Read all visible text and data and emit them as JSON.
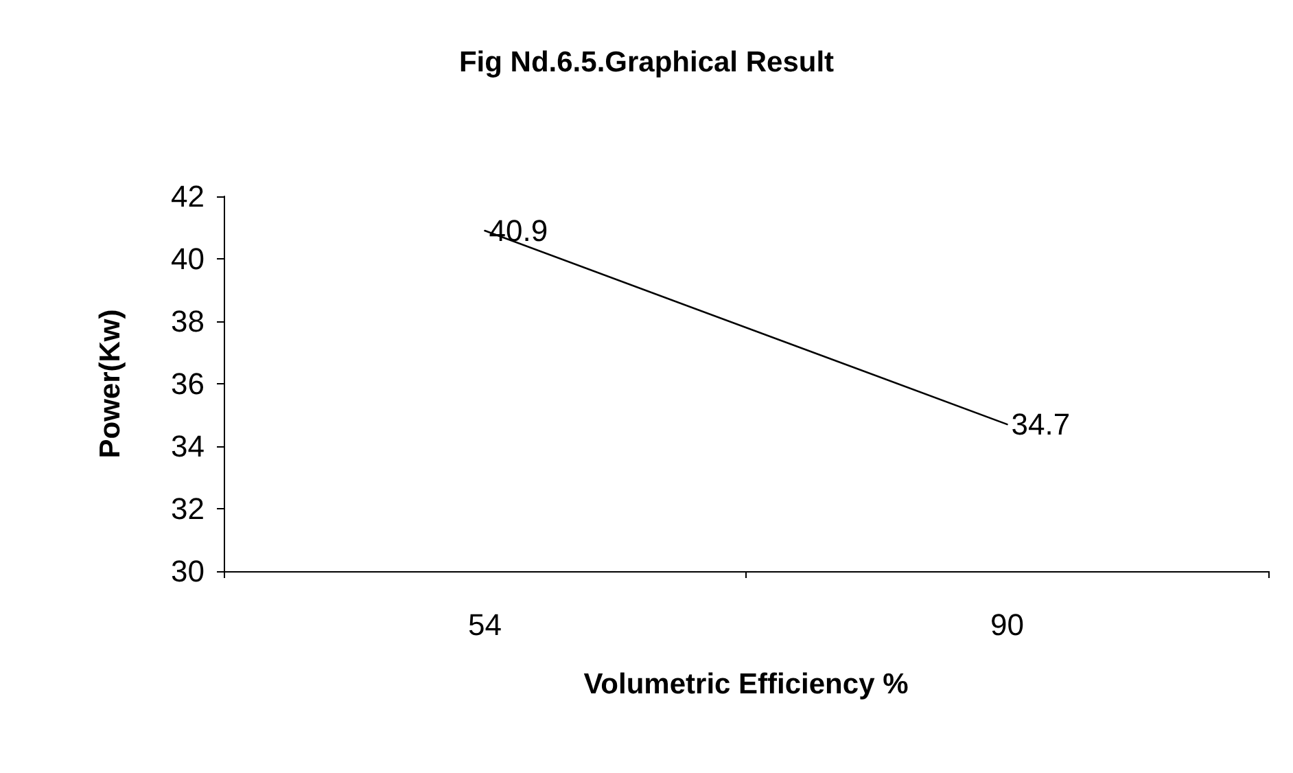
{
  "chart_data": {
    "type": "line",
    "title": "Fig Nd.6.5.Graphical Result",
    "xlabel": "Volumetric Efficiency %",
    "ylabel": "Power(Kw)",
    "categories": [
      "54",
      "90"
    ],
    "series": [
      {
        "color": "#000000",
        "values": [
          40.9,
          34.7
        ]
      }
    ],
    "ylim": [
      30,
      42
    ],
    "yticks": [
      30,
      32,
      34,
      36,
      38,
      40,
      42
    ],
    "grid": false,
    "marker": "none",
    "data_labels": true
  }
}
